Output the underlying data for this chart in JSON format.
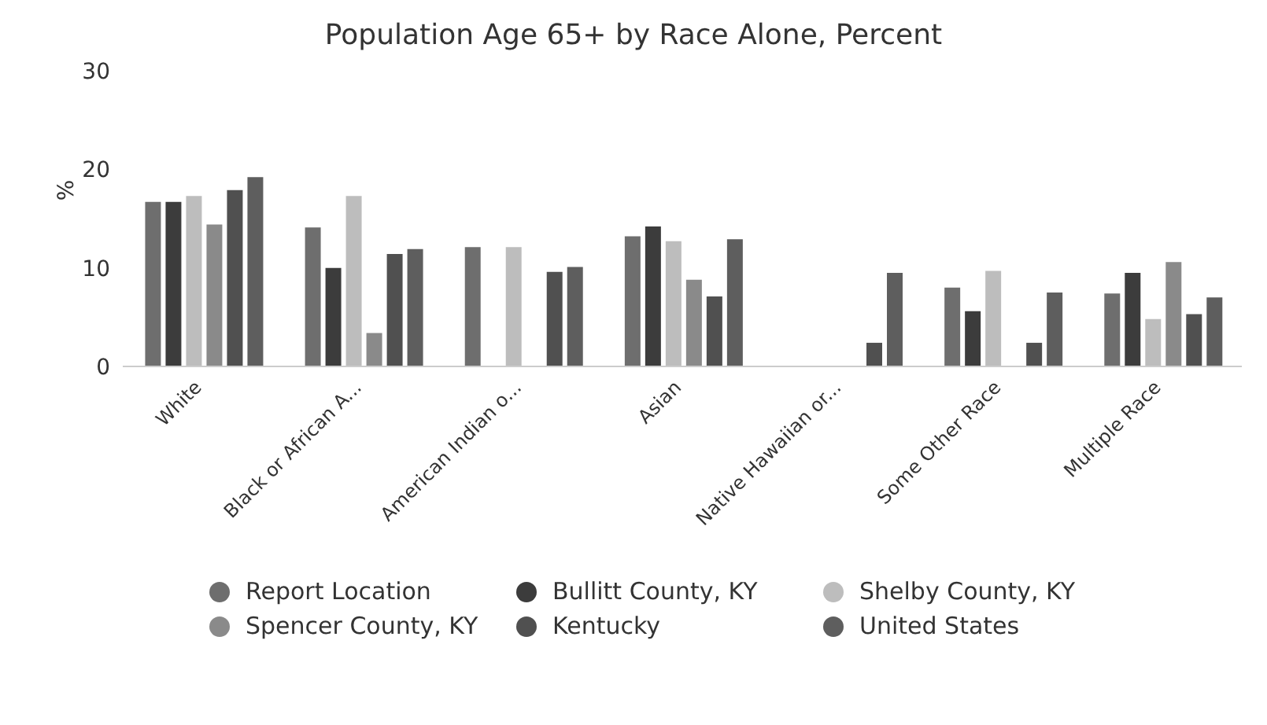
{
  "chart_data": {
    "type": "bar",
    "title": "Population Age 65+ by Race Alone, Percent",
    "ylabel": "%",
    "categories": [
      "White",
      "Black or African A...",
      "American Indian o...",
      "Asian",
      "Native Hawaiian or...",
      "Some Other Race",
      "Multiple Race"
    ],
    "series": [
      {
        "name": "Report Location",
        "color": "#6e6e6e",
        "values": [
          16.7,
          14.1,
          12.1,
          13.2,
          0,
          8.0,
          7.4
        ]
      },
      {
        "name": "Bullitt County, KY",
        "color": "#3c3c3c",
        "values": [
          16.7,
          10.0,
          0,
          14.2,
          0,
          5.6,
          9.5
        ]
      },
      {
        "name": "Shelby County, KY",
        "color": "#bdbdbd",
        "values": [
          17.3,
          17.3,
          12.1,
          12.7,
          0,
          9.7,
          4.8
        ]
      },
      {
        "name": "Spencer County, KY",
        "color": "#8a8a8a",
        "values": [
          14.4,
          3.4,
          0,
          8.8,
          0,
          0,
          10.6
        ]
      },
      {
        "name": "Kentucky",
        "color": "#505050",
        "values": [
          17.9,
          11.4,
          9.6,
          7.1,
          2.4,
          2.4,
          5.3
        ]
      },
      {
        "name": "United States",
        "color": "#5e5e5e",
        "values": [
          19.2,
          11.9,
          10.1,
          12.9,
          9.5,
          7.5,
          7.0
        ]
      }
    ],
    "ylim": [
      0,
      30
    ],
    "yticks": [
      0,
      10,
      20,
      30
    ],
    "grid": false,
    "legend": "bottom"
  }
}
